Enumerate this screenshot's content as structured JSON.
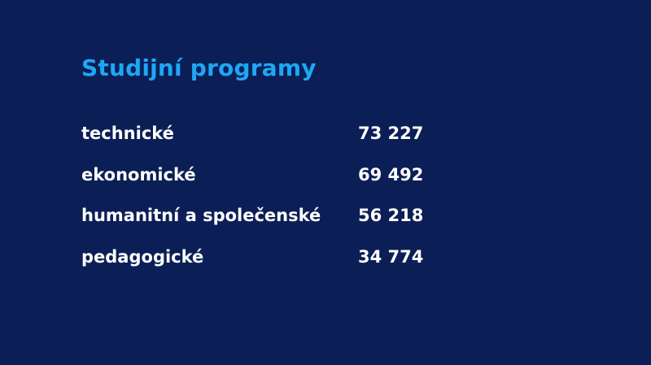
{
  "title": "Studijní programy",
  "rows": [
    {
      "label": "technické",
      "value": "73 227"
    },
    {
      "label": "ekonomické",
      "value": "69 492"
    },
    {
      "label": "humanitní a společenské",
      "value": "56 218"
    },
    {
      "label": "pedagogické",
      "value": "34 774"
    }
  ],
  "colors": {
    "background": "#0b1f56",
    "title": "#1ea7f5",
    "text": "#ffffff"
  }
}
